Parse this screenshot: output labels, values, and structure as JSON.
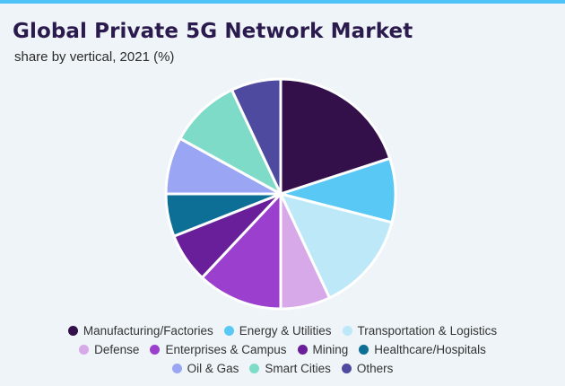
{
  "chart_data": {
    "type": "pie",
    "title": "Global Private 5G Network Market",
    "subtitle": "share by vertical, 2021 (%)",
    "legend_position": "bottom",
    "slices": [
      {
        "name": "Manufacturing/Factories",
        "value": 20.0,
        "color": "#33104a"
      },
      {
        "name": "Energy & Utilities",
        "value": 9.0,
        "color": "#5ac8f5"
      },
      {
        "name": "Transportation & Logistics",
        "value": 14.0,
        "color": "#bde8f8"
      },
      {
        "name": "Defense",
        "value": 7.0,
        "color": "#d7a9e8"
      },
      {
        "name": "Enterprises & Campus",
        "value": 12.0,
        "color": "#9b3fce"
      },
      {
        "name": "Mining",
        "value": 7.0,
        "color": "#6a1f9a"
      },
      {
        "name": "Healthcare/Hospitals",
        "value": 6.0,
        "color": "#0d6e96"
      },
      {
        "name": "Oil & Gas",
        "value": 8.0,
        "color": "#9aa6f3"
      },
      {
        "name": "Smart Cities",
        "value": 10.0,
        "color": "#7edbc8"
      },
      {
        "name": "Others",
        "value": 7.0,
        "color": "#4e4aa0"
      }
    ]
  }
}
